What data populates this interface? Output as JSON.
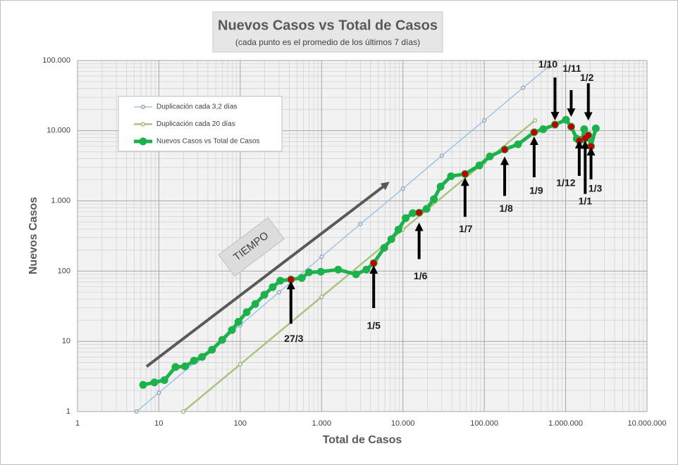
{
  "chart_data": {
    "type": "line",
    "title": "Nuevos Casos vs Total de Casos",
    "subtitle": "(cada punto es el promedio de los últimos 7 días)",
    "x_label": "Total de Casos",
    "y_label": "Nuevos Casos",
    "annotation": "TIEMPO",
    "log_x": true,
    "log_y": true,
    "grid": true,
    "minor_grid": true,
    "legend": "upper left",
    "xlim": [
      1,
      10000000
    ],
    "ylim": [
      1,
      100000
    ],
    "xticks": [
      1,
      10,
      100,
      {
        "value": 1000,
        "label": "1.000"
      },
      {
        "value": 10000,
        "label": "10.000"
      },
      {
        "value": 100000,
        "label": "100.000"
      },
      {
        "value": 1000000,
        "label": "1.000.000"
      },
      {
        "value": 10000000,
        "label": "10.000.000"
      }
    ],
    "yticks": [
      1,
      10,
      100,
      {
        "value": 1000,
        "label": "1.000"
      },
      {
        "value": 10000,
        "label": "10.000"
      },
      {
        "value": 100000,
        "label": "100.000"
      }
    ],
    "series": [
      {
        "name": "Duplicación cada 3,2 días",
        "color": "#9dc3e6",
        "x": [
          5.3,
          10,
          30,
          100,
          300,
          1000,
          3000,
          10000,
          30000,
          100000,
          300000,
          620000
        ],
        "values": [
          1,
          1.85,
          5.4,
          17,
          50,
          160,
          470,
          1500,
          4400,
          14000,
          41000,
          82000
        ]
      },
      {
        "name": "Duplicación cada 20 días",
        "color": "#a9c47f",
        "x": [
          20,
          100,
          1000,
          10000,
          100000,
          420000
        ],
        "values": [
          1,
          4.7,
          43,
          390,
          3550,
          14000
        ]
      },
      {
        "name": "Nuevos Casos vs Total de Casos",
        "color": "#1db14b",
        "x": [
          6.4,
          8.8,
          11.7,
          16,
          21,
          27,
          34,
          45,
          60,
          79,
          95,
          120,
          153,
          198,
          250,
          311,
          420,
          570,
          700,
          980,
          1600,
          2650,
          3550,
          4370,
          5900,
          7200,
          8800,
          10800,
          13200,
          15800,
          19500,
          24000,
          29000,
          39000,
          58000,
          87000,
          117000,
          178000,
          260000,
          410000,
          530000,
          740000,
          1010000,
          1170000,
          1370000,
          1470000,
          1600000,
          1690000,
          1740000,
          1900000,
          2050000,
          2350000
        ],
        "values": [
          2.4,
          2.6,
          2.8,
          4.3,
          4.4,
          5.3,
          6.0,
          7.6,
          10.5,
          14.5,
          19,
          26,
          34,
          46,
          59,
          73,
          76,
          80,
          96,
          98,
          105,
          90,
          105,
          130,
          215,
          285,
          390,
          570,
          670,
          680,
          770,
          1060,
          1600,
          2250,
          2420,
          3200,
          4300,
          5400,
          6400,
          9500,
          10500,
          12200,
          14300,
          11400,
          7700,
          7200,
          7500,
          10500,
          7800,
          8600,
          6000,
          10800
        ]
      }
    ],
    "highlights": [
      {
        "label": "27/3",
        "x": 420,
        "y": 76
      },
      {
        "label": "1/5",
        "x": 4370,
        "y": 130
      },
      {
        "label": "1/6",
        "x": 15800,
        "y": 680
      },
      {
        "label": "1/7",
        "x": 58000,
        "y": 2420
      },
      {
        "label": "1/8",
        "x": 178000,
        "y": 5400
      },
      {
        "label": "1/9",
        "x": 410000,
        "y": 9500
      },
      {
        "label": "1/10",
        "x": 740000,
        "y": 12200
      },
      {
        "label": "1/11",
        "x": 1170000,
        "y": 11400
      },
      {
        "label": "1/12",
        "x": 1470000,
        "y": 7200
      },
      {
        "label": "1/1",
        "x": 1740000,
        "y": 7800
      },
      {
        "label": "1/2",
        "x": 1900000,
        "y": 8600
      },
      {
        "label": "1/3",
        "x": 2050000,
        "y": 6000
      }
    ],
    "highlight_color": "#c00000"
  }
}
